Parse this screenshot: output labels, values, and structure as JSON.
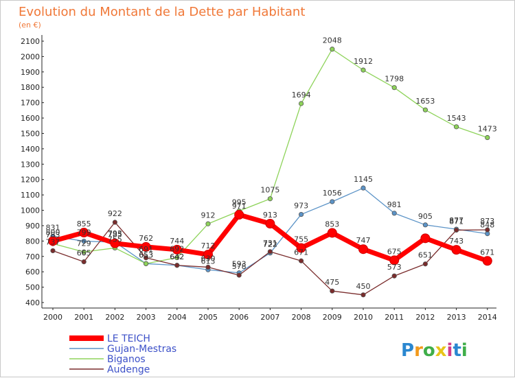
{
  "chart_data": {
    "type": "line",
    "title": "Evolution du Montant de la Dette par Habitant",
    "subtitle": "(en €)",
    "categories": [
      "2000",
      "2001",
      "2002",
      "2003",
      "2004",
      "2005",
      "2006",
      "2007",
      "2008",
      "2009",
      "2010",
      "2011",
      "2012",
      "2013",
      "2014"
    ],
    "ylim": [
      400,
      2100
    ],
    "yticks": [
      400,
      500,
      600,
      700,
      800,
      900,
      1000,
      1100,
      1200,
      1300,
      1400,
      1500,
      1600,
      1700,
      1800,
      1900,
      2000,
      2100
    ],
    "grid": false,
    "legend_placement": "bottom-left",
    "series": [
      {
        "name": "Gujan-Mestras",
        "color": "#5b93c7",
        "values": [
          831,
          799,
          793,
          653,
          642,
          613,
          593,
          722,
          973,
          1056,
          1145,
          981,
          905,
          877,
          848
        ]
      },
      {
        "name": "Biganos",
        "color": "#8ed35a",
        "values": [
          783,
          729,
          755,
          653,
          692,
          912,
          995,
          1075,
          1694,
          2048,
          1912,
          1798,
          1653,
          1543,
          1473
        ]
      },
      {
        "name": "Audenge",
        "color": "#7a2c2c",
        "values": [
          737,
          665,
          922,
          691,
          642,
          630,
          578,
          731,
          671,
          475,
          450,
          573,
          651,
          871,
          873
        ]
      },
      {
        "name": "LE TEICH",
        "color": "#ff0000",
        "values": [
          800,
          855,
          785,
          762,
          744,
          712,
          971,
          913,
          755,
          853,
          747,
          675,
          818,
          743,
          671
        ]
      }
    ],
    "data_labels": [
      {
        "series": 0,
        "index": 0,
        "text": "831"
      },
      {
        "series": 0,
        "index": 1,
        "text": "799"
      },
      {
        "series": 0,
        "index": 2,
        "text": "793"
      },
      {
        "series": 0,
        "index": 3,
        "text": "653"
      },
      {
        "series": 0,
        "index": 4,
        "text": "642"
      },
      {
        "series": 0,
        "index": 5,
        "text": "613"
      },
      {
        "series": 0,
        "index": 6,
        "text": "593"
      },
      {
        "series": 0,
        "index": 7,
        "text": "722"
      },
      {
        "series": 0,
        "index": 8,
        "text": "973"
      },
      {
        "series": 0,
        "index": 9,
        "text": "1056"
      },
      {
        "series": 0,
        "index": 10,
        "text": "1145"
      },
      {
        "series": 0,
        "index": 11,
        "text": "981"
      },
      {
        "series": 0,
        "index": 12,
        "text": "905"
      },
      {
        "series": 0,
        "index": 13,
        "text": "877"
      },
      {
        "series": 0,
        "index": 14,
        "text": "848"
      },
      {
        "series": 1,
        "index": 0,
        "text": "783"
      },
      {
        "series": 1,
        "index": 1,
        "text": "729"
      },
      {
        "series": 1,
        "index": 2,
        "text": "755"
      },
      {
        "series": 1,
        "index": 3,
        "text": "653"
      },
      {
        "series": 1,
        "index": 4,
        "text": "692"
      },
      {
        "series": 1,
        "index": 5,
        "text": "912"
      },
      {
        "series": 1,
        "index": 6,
        "text": "995"
      },
      {
        "series": 1,
        "index": 7,
        "text": "1075"
      },
      {
        "series": 1,
        "index": 8,
        "text": "1694"
      },
      {
        "series": 1,
        "index": 9,
        "text": "2048"
      },
      {
        "series": 1,
        "index": 10,
        "text": "1912"
      },
      {
        "series": 1,
        "index": 11,
        "text": "1798"
      },
      {
        "series": 1,
        "index": 12,
        "text": "1653"
      },
      {
        "series": 1,
        "index": 13,
        "text": "1543"
      },
      {
        "series": 1,
        "index": 14,
        "text": "1473"
      },
      {
        "series": 2,
        "index": 0,
        "text": "737"
      },
      {
        "series": 2,
        "index": 1,
        "text": "665"
      },
      {
        "series": 2,
        "index": 2,
        "text": "922"
      },
      {
        "series": 2,
        "index": 3,
        "text": "691"
      },
      {
        "series": 2,
        "index": 4,
        "text": "642"
      },
      {
        "series": 2,
        "index": 5,
        "text": "630"
      },
      {
        "series": 2,
        "index": 6,
        "text": "578"
      },
      {
        "series": 2,
        "index": 7,
        "text": "731"
      },
      {
        "series": 2,
        "index": 8,
        "text": "671"
      },
      {
        "series": 2,
        "index": 9,
        "text": "475"
      },
      {
        "series": 2,
        "index": 10,
        "text": "450"
      },
      {
        "series": 2,
        "index": 11,
        "text": "573"
      },
      {
        "series": 2,
        "index": 12,
        "text": "651"
      },
      {
        "series": 2,
        "index": 13,
        "text": "871"
      },
      {
        "series": 2,
        "index": 14,
        "text": "873"
      },
      {
        "series": 3,
        "index": 0,
        "text": "800"
      },
      {
        "series": 3,
        "index": 1,
        "text": "855"
      },
      {
        "series": 3,
        "index": 2,
        "text": "785"
      },
      {
        "series": 3,
        "index": 3,
        "text": "762"
      },
      {
        "series": 3,
        "index": 4,
        "text": "744"
      },
      {
        "series": 3,
        "index": 5,
        "text": "712"
      },
      {
        "series": 3,
        "index": 6,
        "text": "971"
      },
      {
        "series": 3,
        "index": 7,
        "text": "913"
      },
      {
        "series": 3,
        "index": 8,
        "text": "755"
      },
      {
        "series": 3,
        "index": 9,
        "text": "853"
      },
      {
        "series": 3,
        "index": 10,
        "text": "747"
      },
      {
        "series": 3,
        "index": 11,
        "text": "675"
      },
      {
        "series": 3,
        "index": 13,
        "text": "743"
      },
      {
        "series": 3,
        "index": 14,
        "text": "671"
      }
    ]
  },
  "legend": {
    "entries": [
      {
        "name": "LE TEICH",
        "color": "#ff0000",
        "text_color": "#3c50c8"
      },
      {
        "name": "Gujan-Mestras",
        "color": "#5b93c7",
        "text_color": "#3c50c8"
      },
      {
        "name": "Biganos",
        "color": "#8ed35a",
        "text_color": "#3c50c8"
      },
      {
        "name": "Audenge",
        "color": "#7a2c2c",
        "text_color": "#3c50c8"
      }
    ]
  },
  "logo": {
    "text": "Proxiti",
    "letters": [
      {
        "ch": "P",
        "color": "#2a87d0"
      },
      {
        "ch": "r",
        "color": "#f29a1c"
      },
      {
        "ch": "o",
        "color": "#3fae49"
      },
      {
        "ch": "x",
        "color": "#e8c41a"
      },
      {
        "ch": "i",
        "color": "#d13c8a"
      },
      {
        "ch": "t",
        "color": "#2a87d0"
      },
      {
        "ch": "i",
        "color": "#3fae49"
      }
    ]
  }
}
